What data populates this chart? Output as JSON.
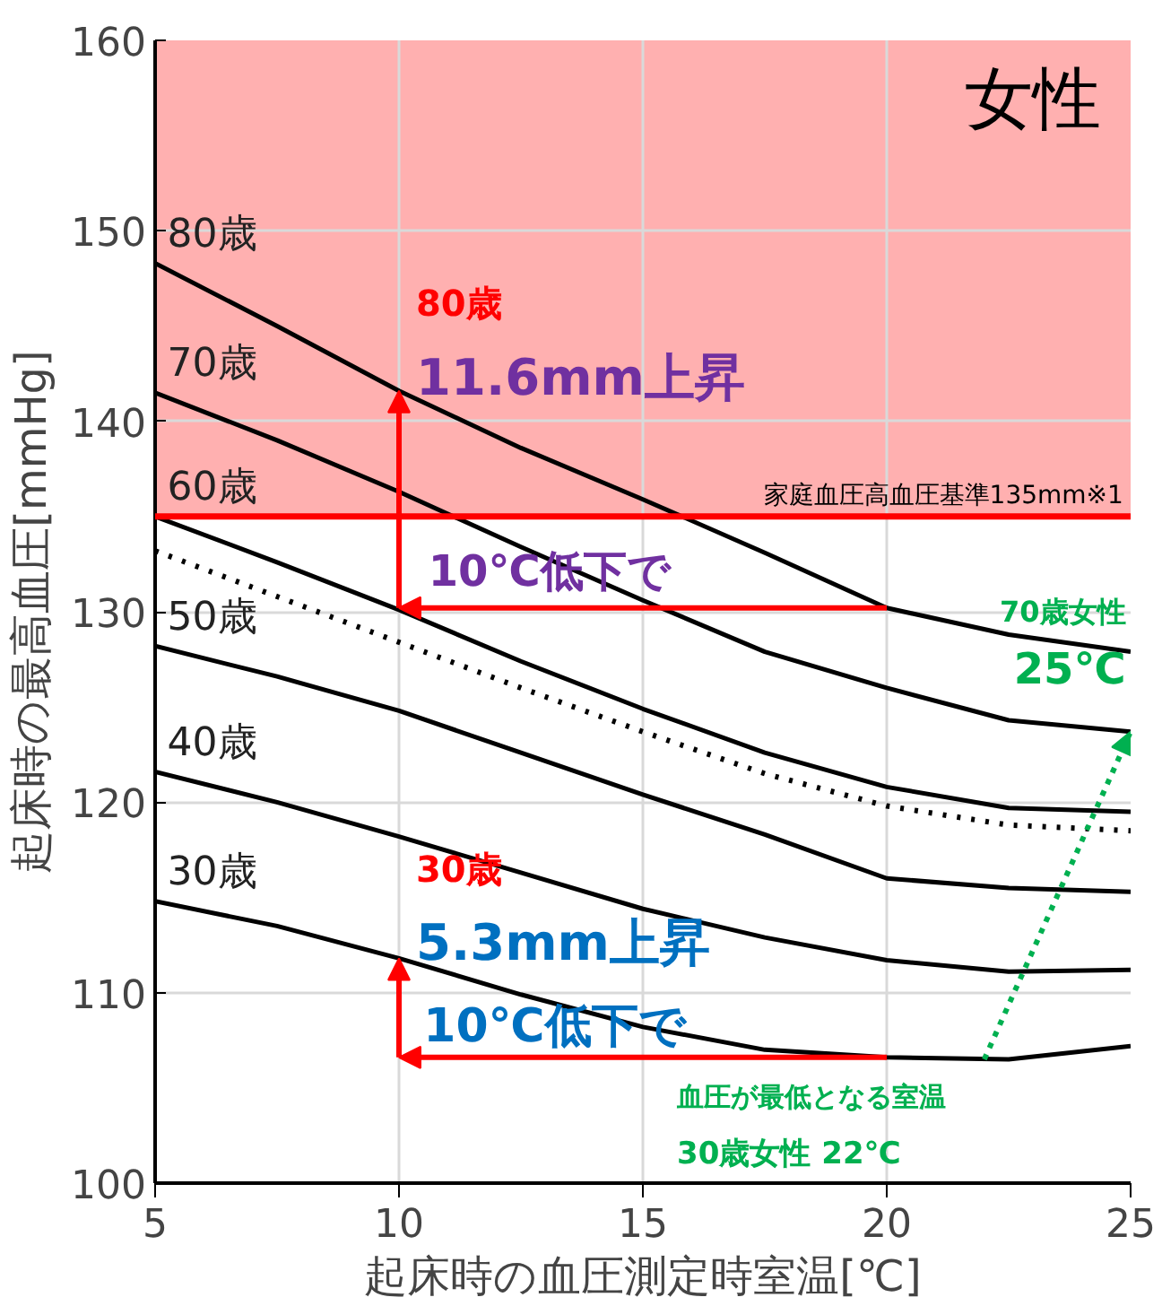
{
  "chart_data": {
    "type": "line",
    "title": "女性",
    "xlabel": "起床時の血圧測定時室温[℃]",
    "ylabel": "起床時の最高血圧[mmHg]",
    "x": [
      5,
      7.5,
      10,
      12.5,
      15,
      17.5,
      20,
      22.5,
      25
    ],
    "series": [
      {
        "name": "80歳",
        "color": "#000000",
        "values": [
          148.3,
          145.0,
          141.6,
          138.6,
          135.9,
          133.1,
          130.2,
          128.8,
          127.9
        ]
      },
      {
        "name": "70歳",
        "color": "#000000",
        "values": [
          141.5,
          139.0,
          136.3,
          133.4,
          130.6,
          127.9,
          126.0,
          124.3,
          123.7
        ]
      },
      {
        "name": "60歳",
        "color": "#000000",
        "values": [
          135.0,
          132.6,
          130.1,
          127.4,
          124.9,
          122.6,
          120.8,
          119.7,
          119.5
        ]
      },
      {
        "color": "#000000",
        "line_style": "dotted",
        "values": [
          133.2,
          130.8,
          128.4,
          126.0,
          123.7,
          121.5,
          119.8,
          118.8,
          118.5
        ]
      },
      {
        "name": "50歳",
        "color": "#000000",
        "values": [
          128.2,
          126.6,
          124.8,
          122.6,
          120.4,
          118.3,
          116.0,
          115.5,
          115.3
        ]
      },
      {
        "name": "40歳",
        "color": "#000000",
        "values": [
          121.6,
          120.0,
          118.2,
          116.3,
          114.4,
          112.9,
          111.7,
          111.1,
          111.2
        ]
      },
      {
        "name": "30歳",
        "color": "#000000",
        "values": [
          114.8,
          113.5,
          111.8,
          109.9,
          108.2,
          107.0,
          106.6,
          106.5,
          107.2
        ]
      }
    ],
    "xlim": [
      5,
      25
    ],
    "xticks": [
      5,
      10,
      15,
      20,
      25
    ],
    "ylim": [
      100,
      160
    ],
    "yticks": [
      100,
      110,
      120,
      130,
      140,
      150,
      160
    ],
    "grid": true,
    "line_style": "solid",
    "marker": "none",
    "bands": [
      {
        "axis": "y",
        "from": 135,
        "to": 160,
        "color": "#ffb0b0"
      }
    ],
    "ref_lines": [
      {
        "axis": "y",
        "value": 135,
        "label": "家庭血圧高血圧基準135mm※1",
        "color": "#ff0000"
      }
    ],
    "annotations": [
      "80歳",
      {
        "text": "11.6mm上昇",
        "x": 10,
        "y": 141.6
      },
      {
        "text": "10℃低下で",
        "x": 20,
        "y": 130.2
      },
      "70歳女性",
      {
        "text": "25℃",
        "x": 25,
        "y": 123.7
      },
      "30歳",
      {
        "text": "5.3mm上昇",
        "x": 10,
        "y": 111.8
      },
      {
        "text": "10℃低下で",
        "x": 20,
        "y": 106.6
      },
      {
        "text": "血圧が最低となる室温",
        "x": 22,
        "y": 106.5
      },
      "30歳女性 22℃"
    ]
  }
}
